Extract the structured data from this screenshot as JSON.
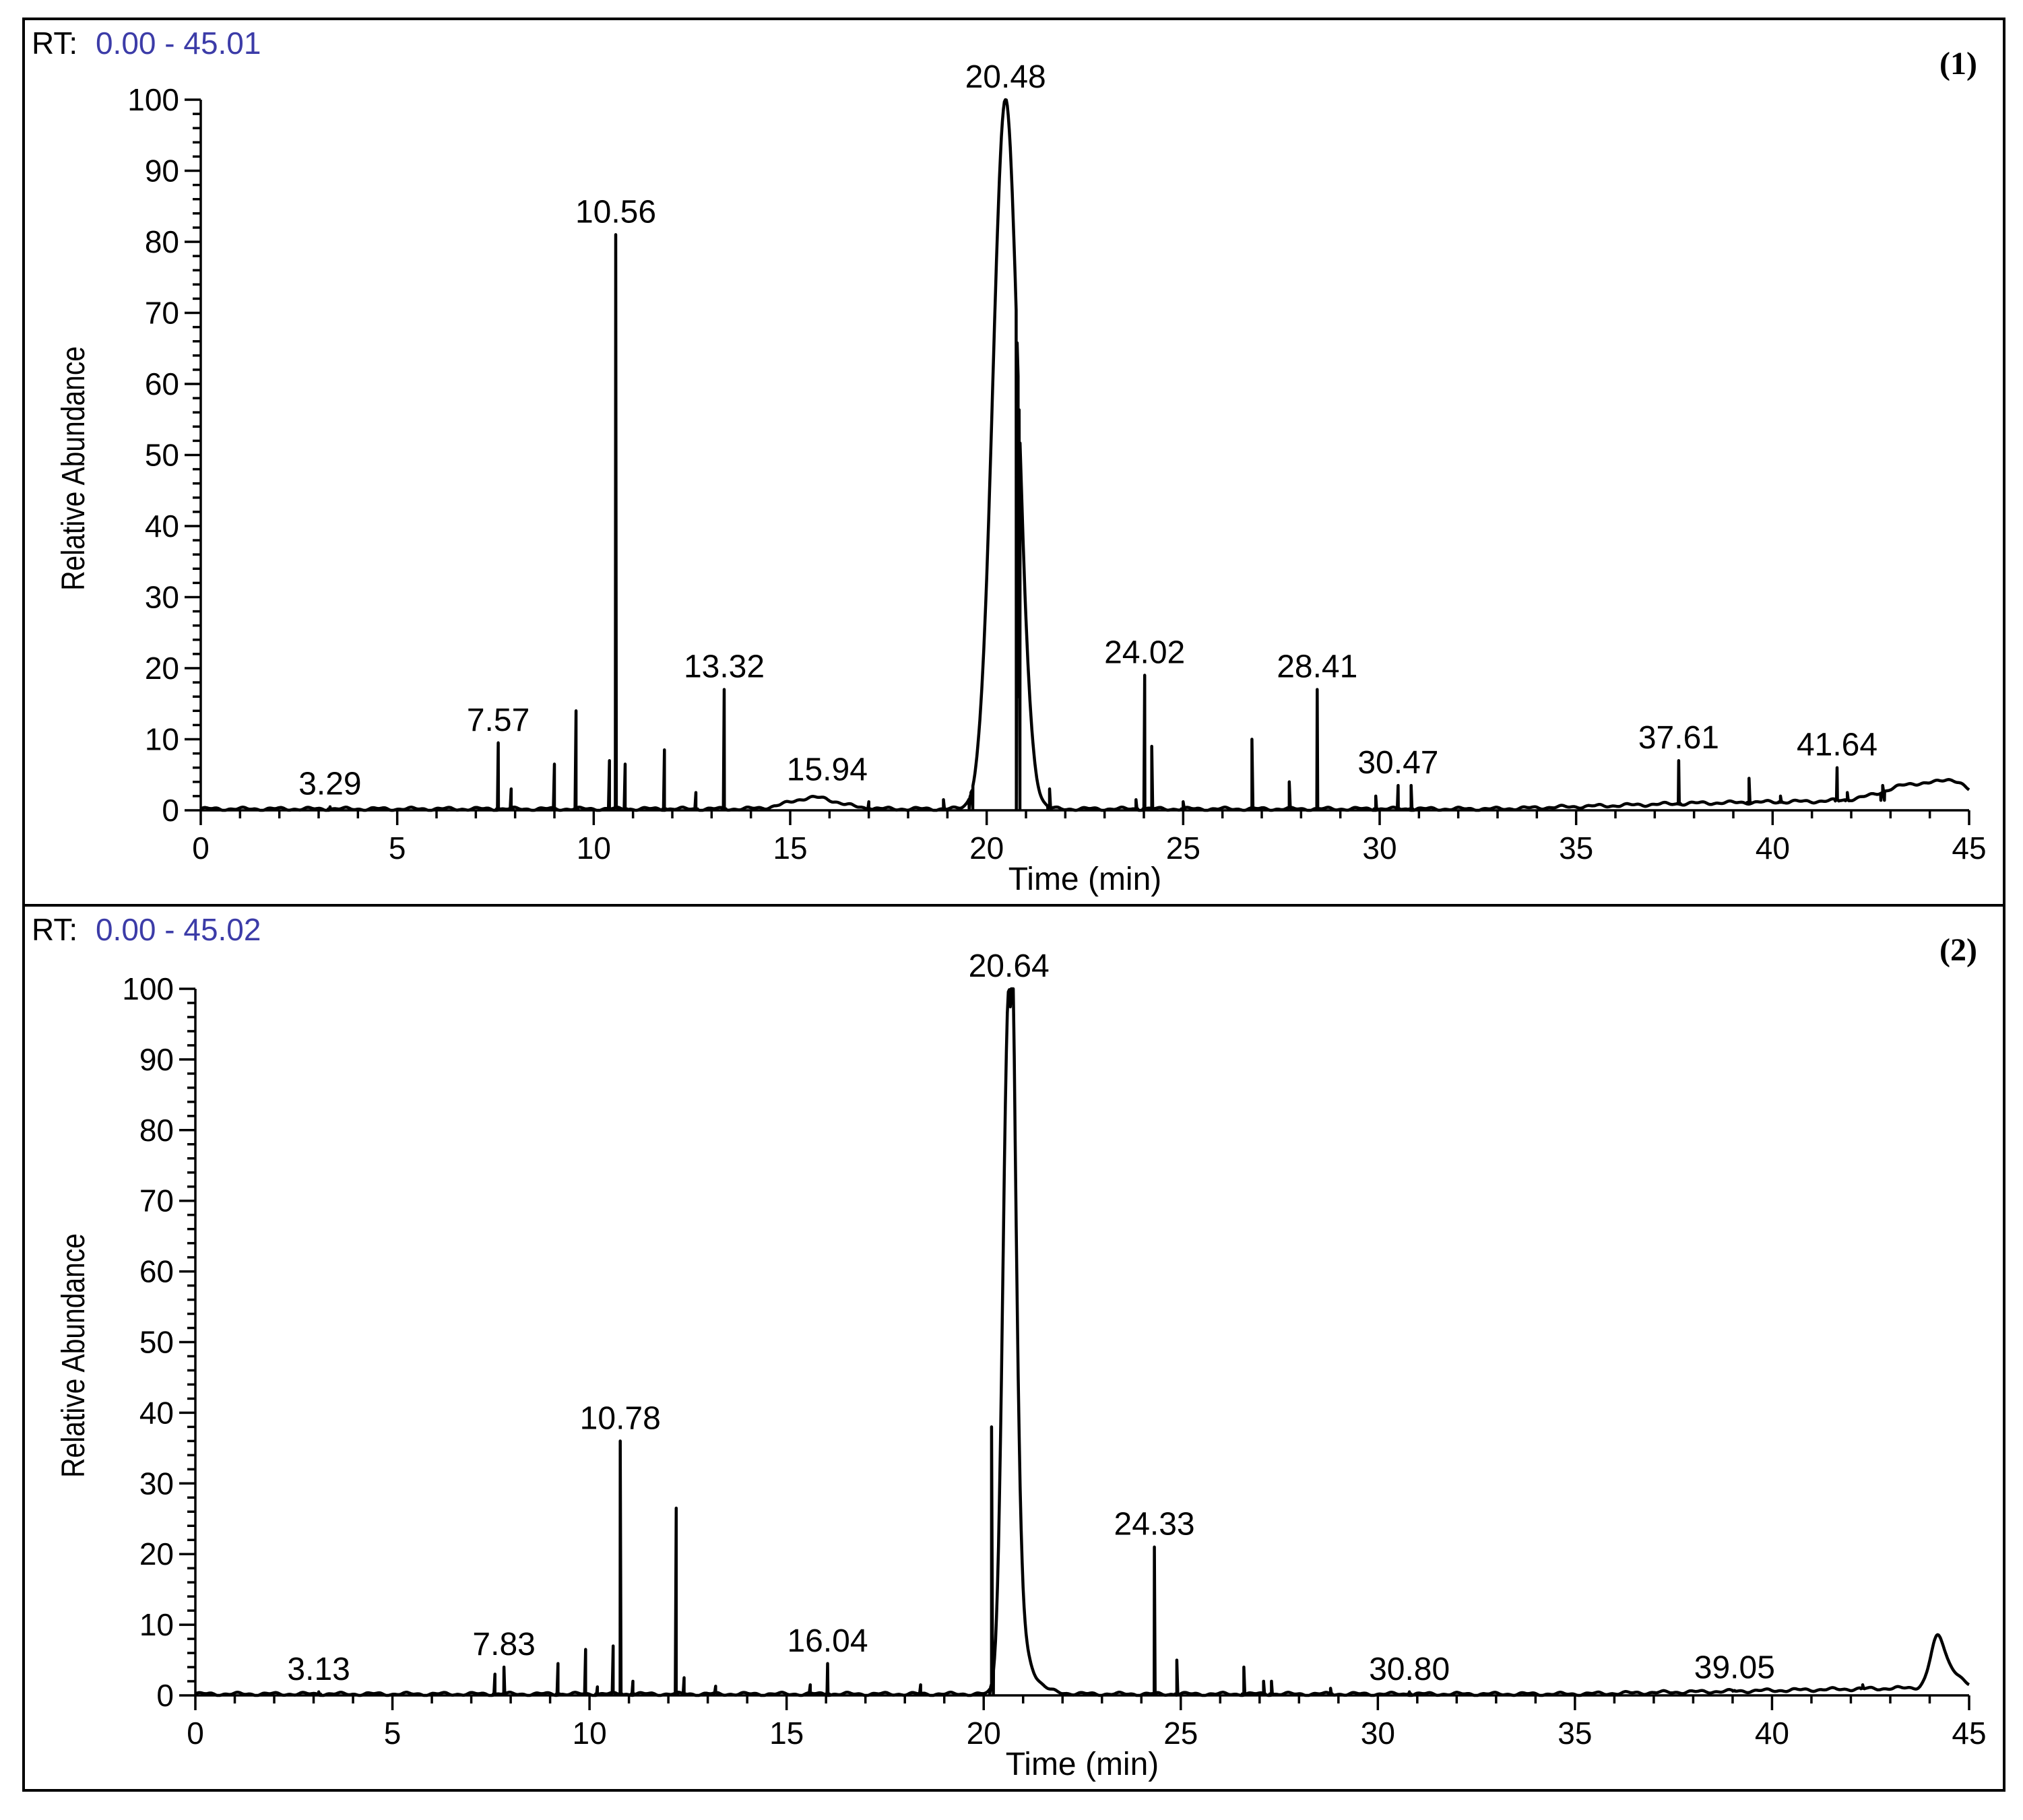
{
  "colors": {
    "rt_range": "#3c3ca8",
    "trace": "#000000"
  },
  "chart_data": [
    {
      "type": "line",
      "panel_label": "(1)",
      "rt_prefix": "RT:",
      "rt_range": "0.00 - 45.01",
      "xlabel": "Time (min)",
      "ylabel": "Relative Abundance",
      "xlim": [
        0,
        45
      ],
      "ylim": [
        0,
        100
      ],
      "x_ticks": [
        "0",
        "5",
        "10",
        "15",
        "20",
        "25",
        "30",
        "35",
        "40",
        "45"
      ],
      "y_ticks": [
        "0",
        "10",
        "20",
        "30",
        "40",
        "50",
        "60",
        "70",
        "80",
        "90",
        "100"
      ],
      "peak_labels": [
        {
          "text": "3.29",
          "x": 3.29,
          "y": 0.5
        },
        {
          "text": "7.57",
          "x": 7.57,
          "y": 9.5
        },
        {
          "text": "10.56",
          "x": 10.56,
          "y": 81
        },
        {
          "text": "13.32",
          "x": 13.32,
          "y": 17
        },
        {
          "text": "15.94",
          "x": 15.94,
          "y": 2.5
        },
        {
          "text": "20.48",
          "x": 20.48,
          "y": 100
        },
        {
          "text": "24.02",
          "x": 24.02,
          "y": 19
        },
        {
          "text": "28.41",
          "x": 28.41,
          "y": 17
        },
        {
          "text": "30.47",
          "x": 30.47,
          "y": 3.5
        },
        {
          "text": "37.61",
          "x": 37.61,
          "y": 7
        },
        {
          "text": "41.64",
          "x": 41.64,
          "y": 6
        }
      ],
      "spikes": [
        [
          3.29,
          0.5
        ],
        [
          7.57,
          9.5
        ],
        [
          7.9,
          3
        ],
        [
          9.0,
          6.5
        ],
        [
          9.55,
          14
        ],
        [
          10.4,
          7
        ],
        [
          10.56,
          81
        ],
        [
          10.8,
          6.5
        ],
        [
          11.8,
          8.5
        ],
        [
          12.6,
          2.5
        ],
        [
          13.32,
          17
        ],
        [
          17.0,
          1.2
        ],
        [
          18.9,
          1.5
        ],
        [
          19.6,
          2.5
        ],
        [
          20.8,
          16
        ],
        [
          21.6,
          3
        ],
        [
          23.8,
          1.5
        ],
        [
          24.02,
          19
        ],
        [
          24.2,
          9
        ],
        [
          25.0,
          1.2
        ],
        [
          26.75,
          10
        ],
        [
          27.7,
          4
        ],
        [
          28.41,
          17
        ],
        [
          29.9,
          2
        ],
        [
          30.47,
          3.5
        ],
        [
          30.8,
          3.5
        ],
        [
          37.61,
          7
        ],
        [
          39.4,
          4.5
        ],
        [
          40.2,
          2
        ],
        [
          41.64,
          6
        ],
        [
          41.9,
          2.5
        ],
        [
          42.8,
          3.5
        ]
      ],
      "broad_peaks": [
        {
          "center": 15.6,
          "height": 1.6,
          "width": 0.6
        },
        {
          "center": 20.48,
          "height": 100,
          "width": 0.32
        },
        {
          "center": 43.7,
          "height": 2.3,
          "width": 0.8
        },
        {
          "center": 44.6,
          "height": 1.5,
          "width": 0.3
        }
      ],
      "baseline_rise": [
        [
          0,
          0
        ],
        [
          33,
          0
        ],
        [
          38,
          0.8
        ],
        [
          45,
          1.4
        ]
      ]
    },
    {
      "type": "line",
      "panel_label": "(2)",
      "rt_prefix": "RT:",
      "rt_range": "0.00 - 45.02",
      "xlabel": "Time (min)",
      "ylabel": "Relative Abundance",
      "xlim": [
        0,
        45
      ],
      "ylim": [
        0,
        100
      ],
      "x_ticks": [
        "0",
        "5",
        "10",
        "15",
        "20",
        "25",
        "30",
        "35",
        "40",
        "45"
      ],
      "y_ticks": [
        "0",
        "10",
        "20",
        "30",
        "40",
        "50",
        "60",
        "70",
        "80",
        "90",
        "100"
      ],
      "peak_labels": [
        {
          "text": "3.13",
          "x": 3.13,
          "y": 0.5
        },
        {
          "text": "7.83",
          "x": 7.83,
          "y": 4
        },
        {
          "text": "10.78",
          "x": 10.78,
          "y": 36
        },
        {
          "text": "16.04",
          "x": 16.04,
          "y": 4.5
        },
        {
          "text": "20.64",
          "x": 20.64,
          "y": 100
        },
        {
          "text": "24.33",
          "x": 24.33,
          "y": 21
        },
        {
          "text": "30.80",
          "x": 30.8,
          "y": 0.5
        },
        {
          "text": "39.05",
          "x": 39.05,
          "y": 0.7
        }
      ],
      "spikes": [
        [
          3.13,
          0.5
        ],
        [
          7.6,
          3
        ],
        [
          7.83,
          4
        ],
        [
          9.2,
          4.5
        ],
        [
          9.9,
          6.5
        ],
        [
          10.2,
          1.2
        ],
        [
          10.6,
          7
        ],
        [
          10.78,
          36
        ],
        [
          11.1,
          2
        ],
        [
          12.2,
          26.5
        ],
        [
          12.4,
          2.5
        ],
        [
          13.2,
          1.3
        ],
        [
          15.6,
          1.5
        ],
        [
          16.04,
          4.5
        ],
        [
          18.4,
          1.5
        ],
        [
          20.2,
          38
        ],
        [
          24.33,
          21
        ],
        [
          24.9,
          5
        ],
        [
          26.6,
          4
        ],
        [
          27.1,
          2
        ],
        [
          27.3,
          2
        ],
        [
          28.8,
          1
        ],
        [
          30.8,
          0.5
        ],
        [
          39.05,
          0.7
        ],
        [
          42.3,
          1.5
        ]
      ],
      "broad_peaks": [
        {
          "center": 20.64,
          "height": 100,
          "width": 0.15
        },
        {
          "center": 44.2,
          "height": 7,
          "width": 0.18
        },
        {
          "center": 44.6,
          "height": 2,
          "width": 0.2
        }
      ],
      "tailing_peaks": [
        {
          "start": 20.64,
          "height": 40,
          "decay": 0.25
        }
      ],
      "baseline_rise": [
        [
          0,
          0
        ],
        [
          35,
          0
        ],
        [
          40,
          0.5
        ],
        [
          45,
          1
        ]
      ]
    }
  ]
}
